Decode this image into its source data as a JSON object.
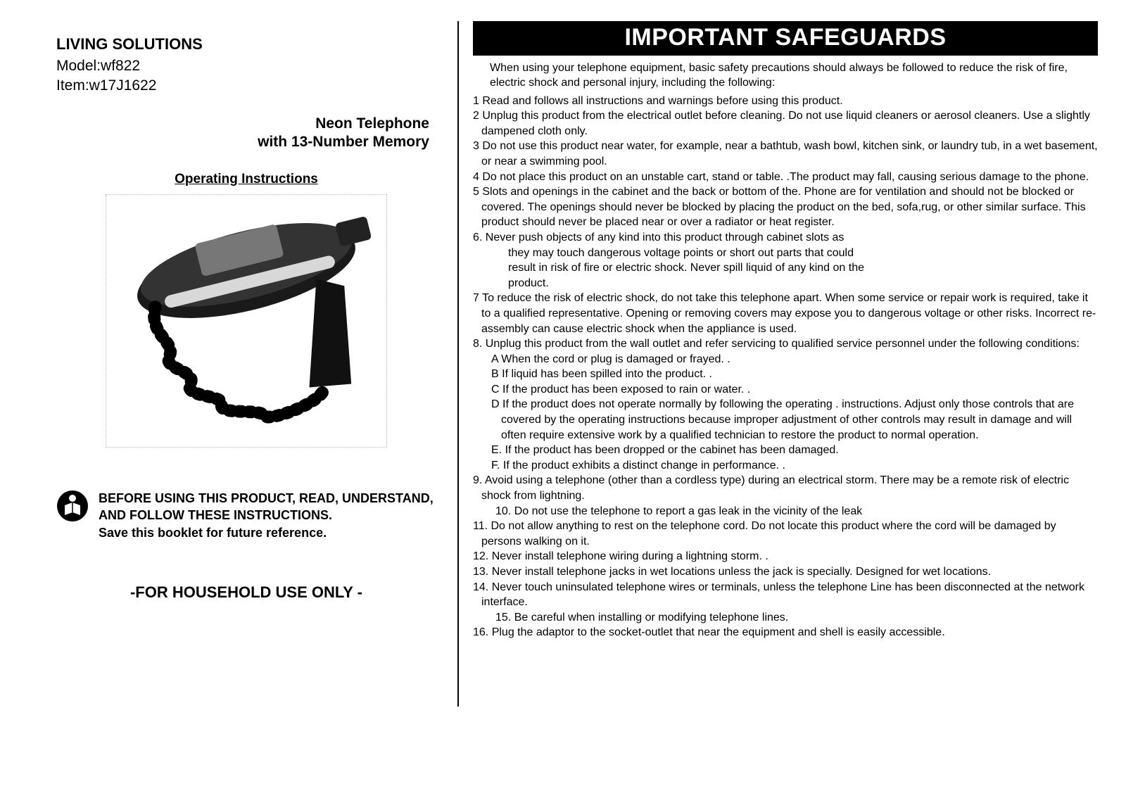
{
  "left": {
    "brand": "LIVING SOLUTIONS",
    "model": "Model:wf822",
    "item": "Item:w17J1622",
    "product_title_1": "Neon Telephone",
    "product_title_2": "with 13-Number Memory",
    "op_instructions": "Operating Instructions",
    "warning_line1": "BEFORE USING THIS PRODUCT, READ, UNDERSTAND, AND FOLLOW THESE INSTRUCTIONS.",
    "warning_line2": "Save this booklet for future reference.",
    "household": "-FOR HOUSEHOLD USE ONLY -"
  },
  "right": {
    "banner": "IMPORTANT SAFEGUARDS",
    "intro": "When using your telephone equipment, basic safety precautions should always be followed to reduce the risk of fire, electric shock and personal injury, including the following:",
    "items": [
      {
        "n": "1",
        "t": "Read and follows all instructions and warnings before using this product."
      },
      {
        "n": "2",
        "t": "Unplug this product from the electrical outlet before cleaning. Do not use liquid cleaners or aerosol cleaners. Use a slightly dampened cloth only."
      },
      {
        "n": "3",
        "t": "Do not use this product near water, for example, near a bathtub, wash bowl, kitchen sink, or laundry tub, in a wet basement, or near a swimming pool."
      },
      {
        "n": "4",
        "t": "Do not place this product on an unstable cart, stand or table. .The product may fall, causing serious damage to the phone."
      },
      {
        "n": "5",
        "t": "Slots and openings in the cabinet and the back or bottom of the. Phone are for ventilation and should not be blocked or covered. The openings should never be blocked by placing the product on the bed, sofa,rug, or other similar surface. This product should never be placed near or over a radiator or heat register."
      },
      {
        "n": "6.",
        "t": "Never push objects of any kind into this product through cabinet slots as",
        "sub": [
          "they may touch dangerous voltage points or short out parts that could",
          "result in risk of fire or electric shock. Never spill liquid of any kind on the",
          "product."
        ]
      },
      {
        "n": "7",
        "t": "To reduce the risk of electric shock, do not take this telephone apart. When some service or repair work is required, take it to a qualified representative. Opening or removing covers may expose you to dangerous voltage or other risks. Incorrect re-assembly can cause electric shock when the appliance is used."
      },
      {
        "n": "8.",
        "t": "Unplug this product from the wall outlet and refer servicing to qualified service personnel under the following conditions:",
        "letters": [
          {
            "l": "A",
            "t": "When the cord or plug is damaged or frayed. ."
          },
          {
            "l": "B",
            "t": "If liquid has been spilled into the product. ."
          },
          {
            "l": "C",
            "t": "If the product has been exposed to rain or water. ."
          },
          {
            "l": "D",
            "t": "If the product does not operate normally by following the operating . instructions. Adjust only those controls that are covered by the operating instructions because improper adjustment of other controls may result in damage and will often require extensive work by a qualified technician to restore the product to normal operation."
          },
          {
            "l": "E.",
            "t": "If the product has been dropped or the cabinet has been damaged."
          },
          {
            "l": "F.",
            "t": "If the product exhibits a distinct change in performance. ."
          }
        ]
      },
      {
        "n": "9.",
        "t": "Avoid using a telephone (other than a cordless type) during an electrical storm. There may be a remote risk of electric shock from lightning."
      },
      {
        "n": "10.",
        "t": "Do not use the telephone to report a gas leak in the vicinity of the leak",
        "inner": true
      },
      {
        "n": "11.",
        "t": "Do not allow anything to rest on the telephone cord. Do not locate this product where the cord will be damaged by persons walking on it."
      },
      {
        "n": "12.",
        "t": "Never install telephone wiring during a lightning storm. ."
      },
      {
        "n": "13.",
        "t": "Never install telephone jacks in wet locations unless the jack is specially. Designed for wet locations."
      },
      {
        "n": "14.",
        "t": "Never touch uninsulated telephone wires or terminals, unless the telephone Line has been disconnected at the network interface."
      },
      {
        "n": "15.",
        "t": "Be careful when installing or modifying telephone lines.",
        "inner": true
      },
      {
        "n": "16.",
        "t": "Plug the adaptor to the socket-outlet that near the equipment and shell is easily accessible."
      }
    ]
  }
}
